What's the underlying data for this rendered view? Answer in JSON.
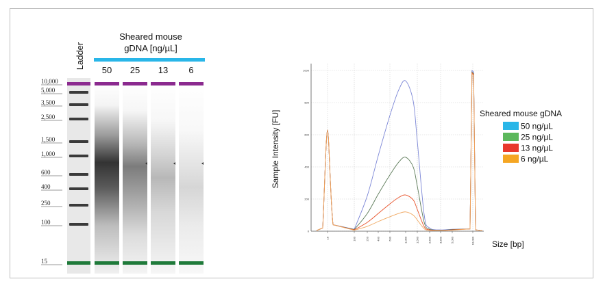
{
  "gel": {
    "ladder_label": "Ladder",
    "group_label_lines": [
      "Sheared mouse",
      "gDNA [ng/µL]"
    ],
    "lanes": [
      "50",
      "25",
      "13",
      "6"
    ],
    "ladder_sizes": [
      "10,000",
      "5,000",
      "3,500",
      "2,500",
      "1,500",
      "1,000",
      "600",
      "400",
      "250",
      "100",
      "15"
    ],
    "bar_color": "#29b6e8",
    "upper_marker_color": "#8b2a8f",
    "lower_marker_color": "#1f7a3a"
  },
  "chart_data": {
    "type": "line",
    "xlabel": "Size [bp]",
    "ylabel": "Sample Intensity [FU]",
    "ylim": [
      0,
      1000
    ],
    "y_ticks": [
      "1000",
      "800",
      "600",
      "400",
      "200",
      "0"
    ],
    "x_ticks": [
      "15",
      "100",
      "250",
      "400",
      "600",
      "1,000",
      "1,500",
      "2,500",
      "3,500",
      "5,000",
      "10,000"
    ],
    "grid": true,
    "legend_title": "Sheared mouse gDNA",
    "legend_position": "right",
    "series": [
      {
        "name": "50 ng/µL",
        "color": "#29b6e8",
        "line_color": "#7b86d6",
        "points": [
          [
            15,
            630
          ],
          [
            100,
            12
          ],
          [
            250,
            220
          ],
          [
            400,
            470
          ],
          [
            600,
            720
          ],
          [
            800,
            880
          ],
          [
            1000,
            935
          ],
          [
            1300,
            810
          ],
          [
            1500,
            560
          ],
          [
            2000,
            100
          ],
          [
            2500,
            20
          ],
          [
            3500,
            8
          ],
          [
            5000,
            12
          ],
          [
            10000,
            1000
          ]
        ]
      },
      {
        "name": "25 ng/µL",
        "color": "#5cb85c",
        "line_color": "#5c7a58",
        "points": [
          [
            15,
            630
          ],
          [
            100,
            10
          ],
          [
            250,
            110
          ],
          [
            400,
            230
          ],
          [
            600,
            350
          ],
          [
            800,
            430
          ],
          [
            1000,
            460
          ],
          [
            1300,
            400
          ],
          [
            1500,
            280
          ],
          [
            2000,
            55
          ],
          [
            2500,
            12
          ],
          [
            3500,
            6
          ],
          [
            5000,
            10
          ],
          [
            10000,
            990
          ]
        ]
      },
      {
        "name": "13 ng/µL",
        "color": "#e8382c",
        "line_color": "#e8542c",
        "points": [
          [
            15,
            630
          ],
          [
            100,
            8
          ],
          [
            250,
            55
          ],
          [
            400,
            110
          ],
          [
            600,
            170
          ],
          [
            800,
            210
          ],
          [
            1000,
            225
          ],
          [
            1300,
            195
          ],
          [
            1500,
            135
          ],
          [
            2000,
            28
          ],
          [
            2500,
            8
          ],
          [
            3500,
            5
          ],
          [
            5000,
            8
          ],
          [
            10000,
            985
          ]
        ]
      },
      {
        "name": "6 ng/µL",
        "color": "#f5a623",
        "line_color": "#f0a860",
        "points": [
          [
            15,
            630
          ],
          [
            100,
            6
          ],
          [
            250,
            30
          ],
          [
            400,
            60
          ],
          [
            600,
            90
          ],
          [
            800,
            110
          ],
          [
            1000,
            120
          ],
          [
            1300,
            100
          ],
          [
            1500,
            70
          ],
          [
            2000,
            15
          ],
          [
            2500,
            5
          ],
          [
            3500,
            4
          ],
          [
            5000,
            6
          ],
          [
            10000,
            980
          ]
        ]
      }
    ]
  }
}
